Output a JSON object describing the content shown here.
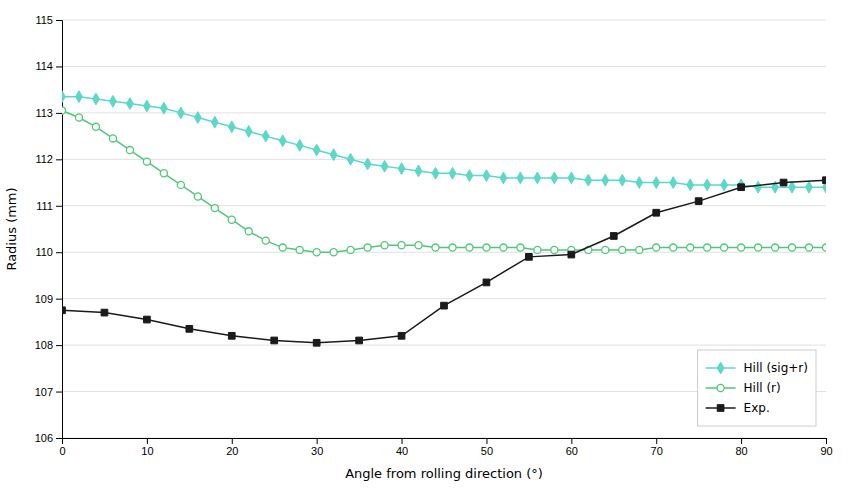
{
  "chart_data": {
    "type": "line",
    "xlabel": "Angle from rolling direction (°)",
    "ylabel": "Radius (mm)",
    "xlim": [
      0,
      90
    ],
    "ylim": [
      106,
      115
    ],
    "xticks": [
      0,
      10,
      20,
      30,
      40,
      50,
      60,
      70,
      80,
      90
    ],
    "yticks": [
      106,
      107,
      108,
      109,
      110,
      111,
      112,
      113,
      114,
      115
    ],
    "grid": true,
    "legend": "lower right",
    "series": [
      {
        "name": "Hill (sig+r)",
        "color": "#5CD8C8",
        "marker": "diamond",
        "x": [
          0,
          2,
          4,
          6,
          8,
          10,
          12,
          14,
          16,
          18,
          20,
          22,
          24,
          26,
          28,
          30,
          32,
          34,
          36,
          38,
          40,
          42,
          44,
          46,
          48,
          50,
          52,
          54,
          56,
          58,
          60,
          62,
          64,
          66,
          68,
          70,
          72,
          74,
          76,
          78,
          80,
          82,
          84,
          86,
          88,
          90
        ],
        "values": [
          113.35,
          113.35,
          113.3,
          113.25,
          113.2,
          113.15,
          113.1,
          113.0,
          112.9,
          112.8,
          112.7,
          112.6,
          112.5,
          112.4,
          112.3,
          112.2,
          112.1,
          112.0,
          111.9,
          111.85,
          111.8,
          111.75,
          111.7,
          111.7,
          111.65,
          111.65,
          111.6,
          111.6,
          111.6,
          111.6,
          111.6,
          111.55,
          111.55,
          111.55,
          111.5,
          111.5,
          111.5,
          111.45,
          111.45,
          111.45,
          111.45,
          111.4,
          111.4,
          111.4,
          111.4,
          111.4
        ]
      },
      {
        "name": "Hill (r)",
        "color": "#50C878",
        "marker": "open-circle",
        "x": [
          0,
          2,
          4,
          6,
          8,
          10,
          12,
          14,
          16,
          18,
          20,
          22,
          24,
          26,
          28,
          30,
          32,
          34,
          36,
          38,
          40,
          42,
          44,
          46,
          48,
          50,
          52,
          54,
          56,
          58,
          60,
          62,
          64,
          66,
          68,
          70,
          72,
          74,
          76,
          78,
          80,
          82,
          84,
          86,
          88,
          90
        ],
        "values": [
          113.05,
          112.9,
          112.7,
          112.45,
          112.2,
          111.95,
          111.7,
          111.45,
          111.2,
          110.95,
          110.7,
          110.45,
          110.25,
          110.1,
          110.05,
          110.0,
          110.0,
          110.05,
          110.1,
          110.15,
          110.15,
          110.15,
          110.1,
          110.1,
          110.1,
          110.1,
          110.1,
          110.1,
          110.05,
          110.05,
          110.05,
          110.05,
          110.05,
          110.05,
          110.05,
          110.1,
          110.1,
          110.1,
          110.1,
          110.1,
          110.1,
          110.1,
          110.1,
          110.1,
          110.1,
          110.1
        ]
      },
      {
        "name": "Exp.",
        "color": "#1a1a1a",
        "marker": "square",
        "x": [
          0,
          5,
          10,
          15,
          20,
          25,
          30,
          35,
          40,
          45,
          50,
          55,
          60,
          65,
          70,
          75,
          80,
          85,
          90
        ],
        "values": [
          108.75,
          108.7,
          108.55,
          108.35,
          108.2,
          108.1,
          108.05,
          108.1,
          108.2,
          108.85,
          109.35,
          109.9,
          109.95,
          110.35,
          110.85,
          111.1,
          111.4,
          111.5,
          111.55
        ]
      }
    ]
  }
}
